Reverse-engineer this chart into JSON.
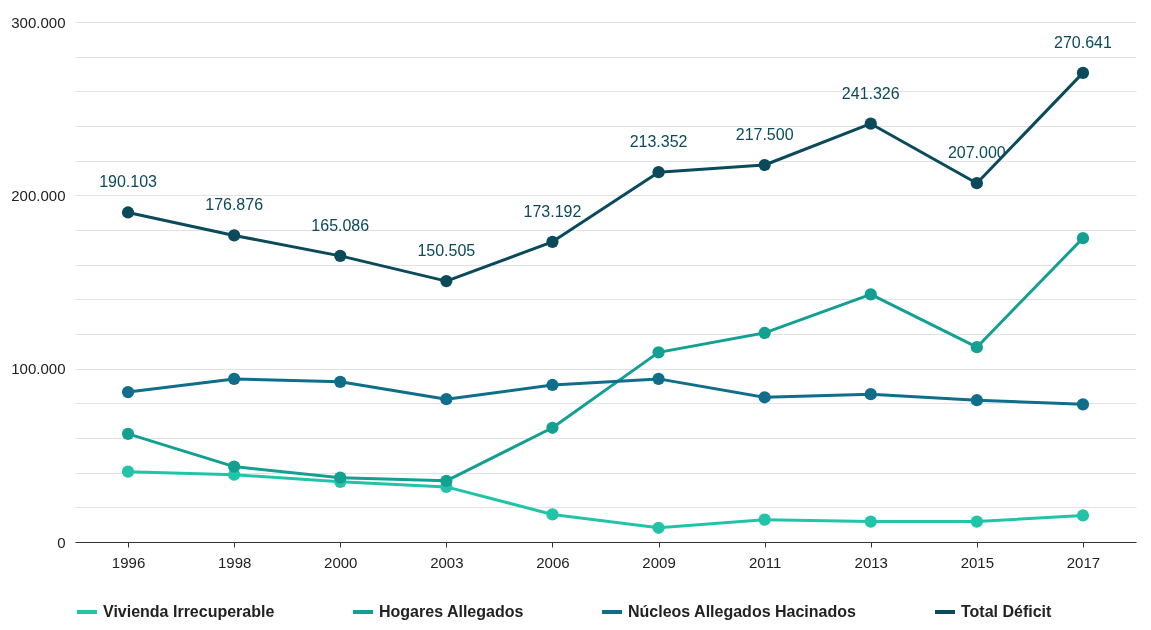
{
  "chart_data": {
    "type": "line",
    "categories": [
      "1996",
      "1998",
      "2000",
      "2003",
      "2006",
      "2009",
      "2011",
      "2013",
      "2015",
      "2017"
    ],
    "series": [
      {
        "name": "Vivienda Irrecuperable",
        "color": "#22c4a8",
        "values": [
          40600,
          38800,
          34700,
          31800,
          15900,
          8200,
          12900,
          11800,
          11800,
          15300
        ]
      },
      {
        "name": "Hogares Allegados",
        "color": "#13a092",
        "values": [
          62400,
          43500,
          37100,
          35300,
          65900,
          109400,
          120600,
          142900,
          112400,
          175300
        ]
      },
      {
        "name": "Núcleos Allegados Hacinados",
        "color": "#116e8a",
        "values": [
          86500,
          94100,
          92400,
          82400,
          90600,
          94100,
          83500,
          85300,
          81800,
          79400
        ]
      },
      {
        "name": "Total Déficit",
        "color": "#0b4a5a",
        "values": [
          190103,
          176876,
          165086,
          150505,
          173192,
          213352,
          217500,
          241326,
          207000,
          270641
        ],
        "value_labels": [
          "190.103",
          "176.876",
          "165.086",
          "150.505",
          "173.192",
          "213.352",
          "217.500",
          "241.326",
          "207.000",
          "270.641"
        ]
      }
    ],
    "ylim": [
      0,
      300000
    ],
    "yticks": [
      0,
      {
        "value": 20000,
        "label": null
      },
      {
        "value": 40000,
        "label": null
      },
      {
        "value": 60000,
        "label": null
      },
      {
        "value": 80000,
        "label": null
      },
      {
        "value": 100000,
        "label": "100.000"
      },
      {
        "value": 120000,
        "label": null
      },
      {
        "value": 140000,
        "label": null
      },
      {
        "value": 160000,
        "label": null
      },
      {
        "value": 180000,
        "label": null
      },
      {
        "value": 200000,
        "label": "200.000"
      },
      {
        "value": 220000,
        "label": null
      },
      {
        "value": 240000,
        "label": null
      },
      {
        "value": 260000,
        "label": null
      },
      {
        "value": 280000,
        "label": null
      },
      {
        "value": 300000,
        "label": "300.000"
      }
    ],
    "grid": "y",
    "legend": "bottom",
    "marker": "circle",
    "line_style": "solid"
  }
}
